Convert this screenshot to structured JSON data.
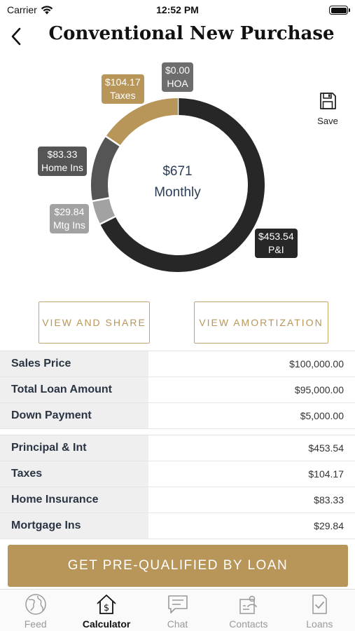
{
  "status_bar": {
    "carrier": "Carrier",
    "time": "12:52 PM"
  },
  "nav": {
    "title": "Conventional New Purchase"
  },
  "summary": {
    "amount": "$671",
    "label": "Monthly"
  },
  "chart_data": {
    "type": "pie",
    "donut": true,
    "slices": [
      {
        "key": "pi",
        "amount": "$453.54",
        "name": "P&I",
        "value": 453.54,
        "color": "#272727"
      },
      {
        "key": "mtgins",
        "amount": "$29.84",
        "name": "Mtg Ins",
        "value": 29.84,
        "color": "#a2a2a2"
      },
      {
        "key": "homeins",
        "amount": "$83.33",
        "name": "Home Ins",
        "value": 83.33,
        "color": "#555555"
      },
      {
        "key": "taxes",
        "amount": "$104.17",
        "name": "Taxes",
        "value": 104.17,
        "color": "#b89659"
      },
      {
        "key": "hoa",
        "amount": "$0.00",
        "name": "HOA",
        "value": 0.0,
        "color": "#6d6d6d"
      }
    ]
  },
  "save": {
    "label": "Save",
    "icon": "save-icon"
  },
  "buttons": {
    "view_share": "VIEW AND SHARE",
    "view_amortization": "VIEW AMORTIZATION"
  },
  "loan_table": [
    {
      "label": "Sales Price",
      "value": "$100,000.00"
    },
    {
      "label": "Total Loan Amount",
      "value": "$95,000.00"
    },
    {
      "label": "Down Payment",
      "value": "$5,000.00"
    }
  ],
  "payment_table": [
    {
      "label": "Principal & Int",
      "value": "$453.54"
    },
    {
      "label": "Taxes",
      "value": "$104.17"
    },
    {
      "label": "Home Insurance",
      "value": "$83.33"
    },
    {
      "label": "Mortgage Ins",
      "value": "$29.84"
    }
  ],
  "cta": {
    "label": "GET PRE-QUALIFIED BY LOAN"
  },
  "tabs": [
    {
      "label": "Feed",
      "icon": "globe-icon",
      "active": false
    },
    {
      "label": "Calculator",
      "icon": "calculator-house-icon",
      "active": true
    },
    {
      "label": "Chat",
      "icon": "chat-icon",
      "active": false
    },
    {
      "label": "Contacts",
      "icon": "contacts-icon",
      "active": false
    },
    {
      "label": "Loans",
      "icon": "loans-document-icon",
      "active": false
    }
  ],
  "colors": {
    "accent": "#b89659",
    "dark": "#272727",
    "text": "#2a3443"
  }
}
